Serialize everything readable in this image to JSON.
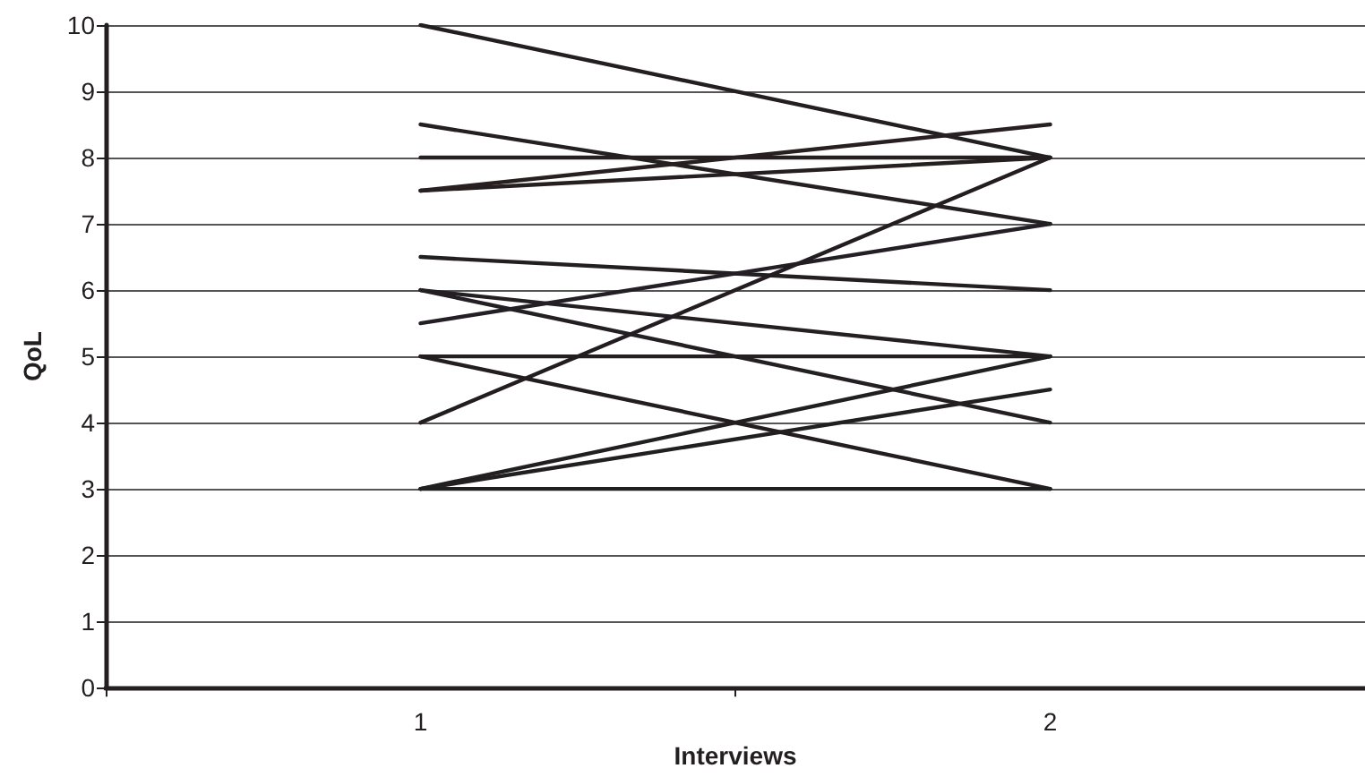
{
  "chart_data": {
    "type": "line",
    "xlabel": "Interviews",
    "ylabel": "QoL",
    "categories": [
      "1",
      "2"
    ],
    "series": [
      {
        "color": "#231f20",
        "values": [
          10,
          8
        ]
      },
      {
        "color": "#241f20",
        "values": [
          8.5,
          7
        ]
      },
      {
        "color": "#251f20",
        "values": [
          8,
          8
        ]
      },
      {
        "color": "#261f20",
        "values": [
          7.5,
          8
        ]
      },
      {
        "color": "#271f20",
        "values": [
          7.5,
          8.5
        ]
      },
      {
        "color": "#231f21",
        "values": [
          6.5,
          6
        ]
      },
      {
        "color": "#231f22",
        "values": [
          6,
          5
        ]
      },
      {
        "color": "#231f23",
        "values": [
          6,
          4
        ]
      },
      {
        "color": "#231f24",
        "values": [
          5.5,
          7
        ]
      },
      {
        "color": "#231e20",
        "values": [
          5,
          5
        ]
      },
      {
        "color": "#231d20",
        "values": [
          5,
          3
        ]
      },
      {
        "color": "#231c20",
        "values": [
          4,
          8
        ]
      },
      {
        "color": "#221f20",
        "values": [
          3,
          5
        ]
      },
      {
        "color": "#211f20",
        "values": [
          3,
          4.5
        ]
      },
      {
        "color": "#201f20",
        "values": [
          3,
          3
        ]
      }
    ],
    "ylim": [
      0,
      10
    ],
    "yticks": [
      0,
      1,
      2,
      3,
      4,
      5,
      6,
      7,
      8,
      9,
      10
    ],
    "grid": "y",
    "marker": "none",
    "line_style": "solid"
  }
}
